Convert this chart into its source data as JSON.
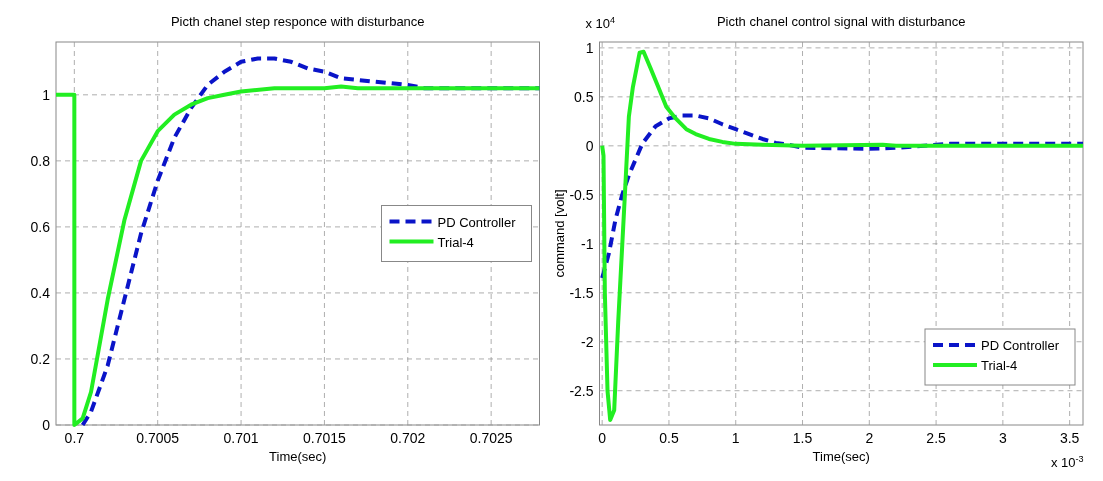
{
  "chart_data": [
    {
      "type": "line",
      "title": "Picth chanel step responce with disturbance",
      "xlabel": "Time(sec)",
      "xlim": [
        0.69989,
        0.70279
      ],
      "xticks": [
        0.7,
        0.7005,
        0.701,
        0.7015,
        0.702,
        0.7025
      ],
      "ylim": [
        0,
        1.16
      ],
      "yticks": [
        0,
        0.2,
        0.4,
        0.6,
        0.8,
        1
      ],
      "grid": true,
      "legend": "right",
      "series": [
        {
          "name": "PD Controller",
          "color": "#0a14c8",
          "line_style": "dashed",
          "x": [
            0.70005,
            0.7001,
            0.7002,
            0.7003,
            0.7004,
            0.7005,
            0.7006,
            0.7007,
            0.7008,
            0.7009,
            0.701,
            0.7011,
            0.7012,
            0.7013,
            0.7014,
            0.7015,
            0.7016,
            0.7018,
            0.702,
            0.7021,
            0.70279
          ],
          "values": [
            0,
            0.04,
            0.18,
            0.38,
            0.58,
            0.74,
            0.87,
            0.96,
            1.03,
            1.07,
            1.1,
            1.11,
            1.11,
            1.1,
            1.08,
            1.07,
            1.05,
            1.04,
            1.03,
            1.02,
            1.02
          ]
        },
        {
          "name": "Trial-4",
          "color": "#22ee22",
          "line_style": "solid",
          "x": [
            0.69989,
            0.7,
            0.7,
            0.70005,
            0.7001,
            0.7002,
            0.7003,
            0.7004,
            0.7005,
            0.7006,
            0.7007,
            0.7008,
            0.7009,
            0.701,
            0.7012,
            0.7015,
            0.7016,
            0.7017,
            0.70279
          ],
          "values": [
            1,
            1,
            0,
            0.02,
            0.1,
            0.38,
            0.62,
            0.8,
            0.89,
            0.94,
            0.97,
            0.99,
            1,
            1.01,
            1.02,
            1.02,
            1.025,
            1.02,
            1.02
          ]
        }
      ]
    },
    {
      "type": "line",
      "title": "Picth chanel control signal with disturbance",
      "xlabel": "Time(sec)",
      "ylabel": "command [volt]",
      "annotations": [
        "x 10$^{4}$",
        "x 10$^{-3}$"
      ],
      "xlim": [
        -0.02,
        3.6
      ],
      "xticks": [
        0,
        0.5,
        1,
        1.5,
        2,
        2.5,
        3,
        3.5
      ],
      "ylim": [
        -2.85,
        1.06
      ],
      "yticks": [
        -2.5,
        -2,
        -1.5,
        -1,
        -0.5,
        0,
        0.5,
        1
      ],
      "grid": true,
      "legend": "bottom right",
      "series": [
        {
          "name": "PD Controller",
          "color": "#0a14c8",
          "line_style": "dashed",
          "x": [
            0,
            0.05,
            0.1,
            0.15,
            0.2,
            0.3,
            0.4,
            0.5,
            0.6,
            0.7,
            0.8,
            0.9,
            1,
            1.1,
            1.2,
            1.3,
            1.4,
            1.5,
            2,
            2.2,
            2.6,
            3.6
          ],
          "values": [
            -1.35,
            -1.1,
            -0.75,
            -0.5,
            -0.3,
            0.02,
            0.2,
            0.28,
            0.31,
            0.31,
            0.28,
            0.22,
            0.17,
            0.12,
            0.07,
            0.03,
            0.01,
            -0.02,
            -0.03,
            -0.02,
            0.02,
            0.02
          ]
        },
        {
          "name": "Trial-4",
          "color": "#22ee22",
          "line_style": "solid",
          "x": [
            0,
            0.01,
            0.02,
            0.04,
            0.06,
            0.09,
            0.12,
            0.17,
            0.2,
            0.23,
            0.28,
            0.31,
            0.36,
            0.42,
            0.48,
            0.55,
            0.63,
            0.7,
            0.8,
            0.9,
            1,
            1.2,
            1.5,
            2.1,
            2.2,
            3.6
          ],
          "values": [
            0,
            -0.1,
            -1.5,
            -2.5,
            -2.8,
            -2.7,
            -1.8,
            -0.5,
            0.3,
            0.6,
            0.95,
            0.96,
            0.8,
            0.6,
            0.4,
            0.28,
            0.17,
            0.12,
            0.07,
            0.04,
            0.02,
            0.01,
            0,
            0.01,
            0,
            0
          ]
        }
      ]
    }
  ]
}
